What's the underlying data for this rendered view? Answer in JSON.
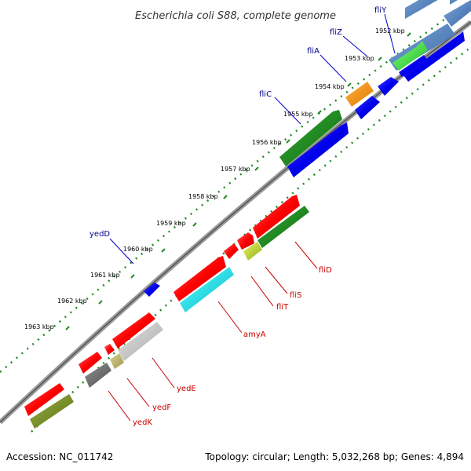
{
  "title": "Escherichia coli S88, complete genome",
  "footer": {
    "accession": "Accession: NC_011742",
    "summary": "Topology: circular; Length: 5,032,268 bp; Genes: 4,894"
  },
  "colors": {
    "plus_strand_label": "#00008b",
    "minus_strand_label": "#cc0000",
    "backbone": "#888888",
    "tick": "#228b22"
  },
  "ticks": [
    {
      "label": "1952 kbp"
    },
    {
      "label": "1953 kbp"
    },
    {
      "label": "1954 kbp"
    },
    {
      "label": "1955 kbp"
    },
    {
      "label": "1956 kbp"
    },
    {
      "label": "1957 kbp"
    },
    {
      "label": "1958 kbp"
    },
    {
      "label": "1959 kbp"
    },
    {
      "label": "1960 kbp"
    },
    {
      "label": "1961 kbp"
    },
    {
      "label": "1962 kbp"
    },
    {
      "label": "1963 kbp"
    }
  ],
  "gene_labels": {
    "fliY": "fliY",
    "fliZ": "fliZ",
    "fliA": "fliA",
    "fliC": "fliC",
    "yedD": "yedD",
    "fliD": "fliD",
    "fliS": "fliS",
    "fliT": "fliT",
    "amyA": "amyA",
    "yedE": "yedE",
    "yedF": "yedF",
    "yedK": "yedK"
  }
}
